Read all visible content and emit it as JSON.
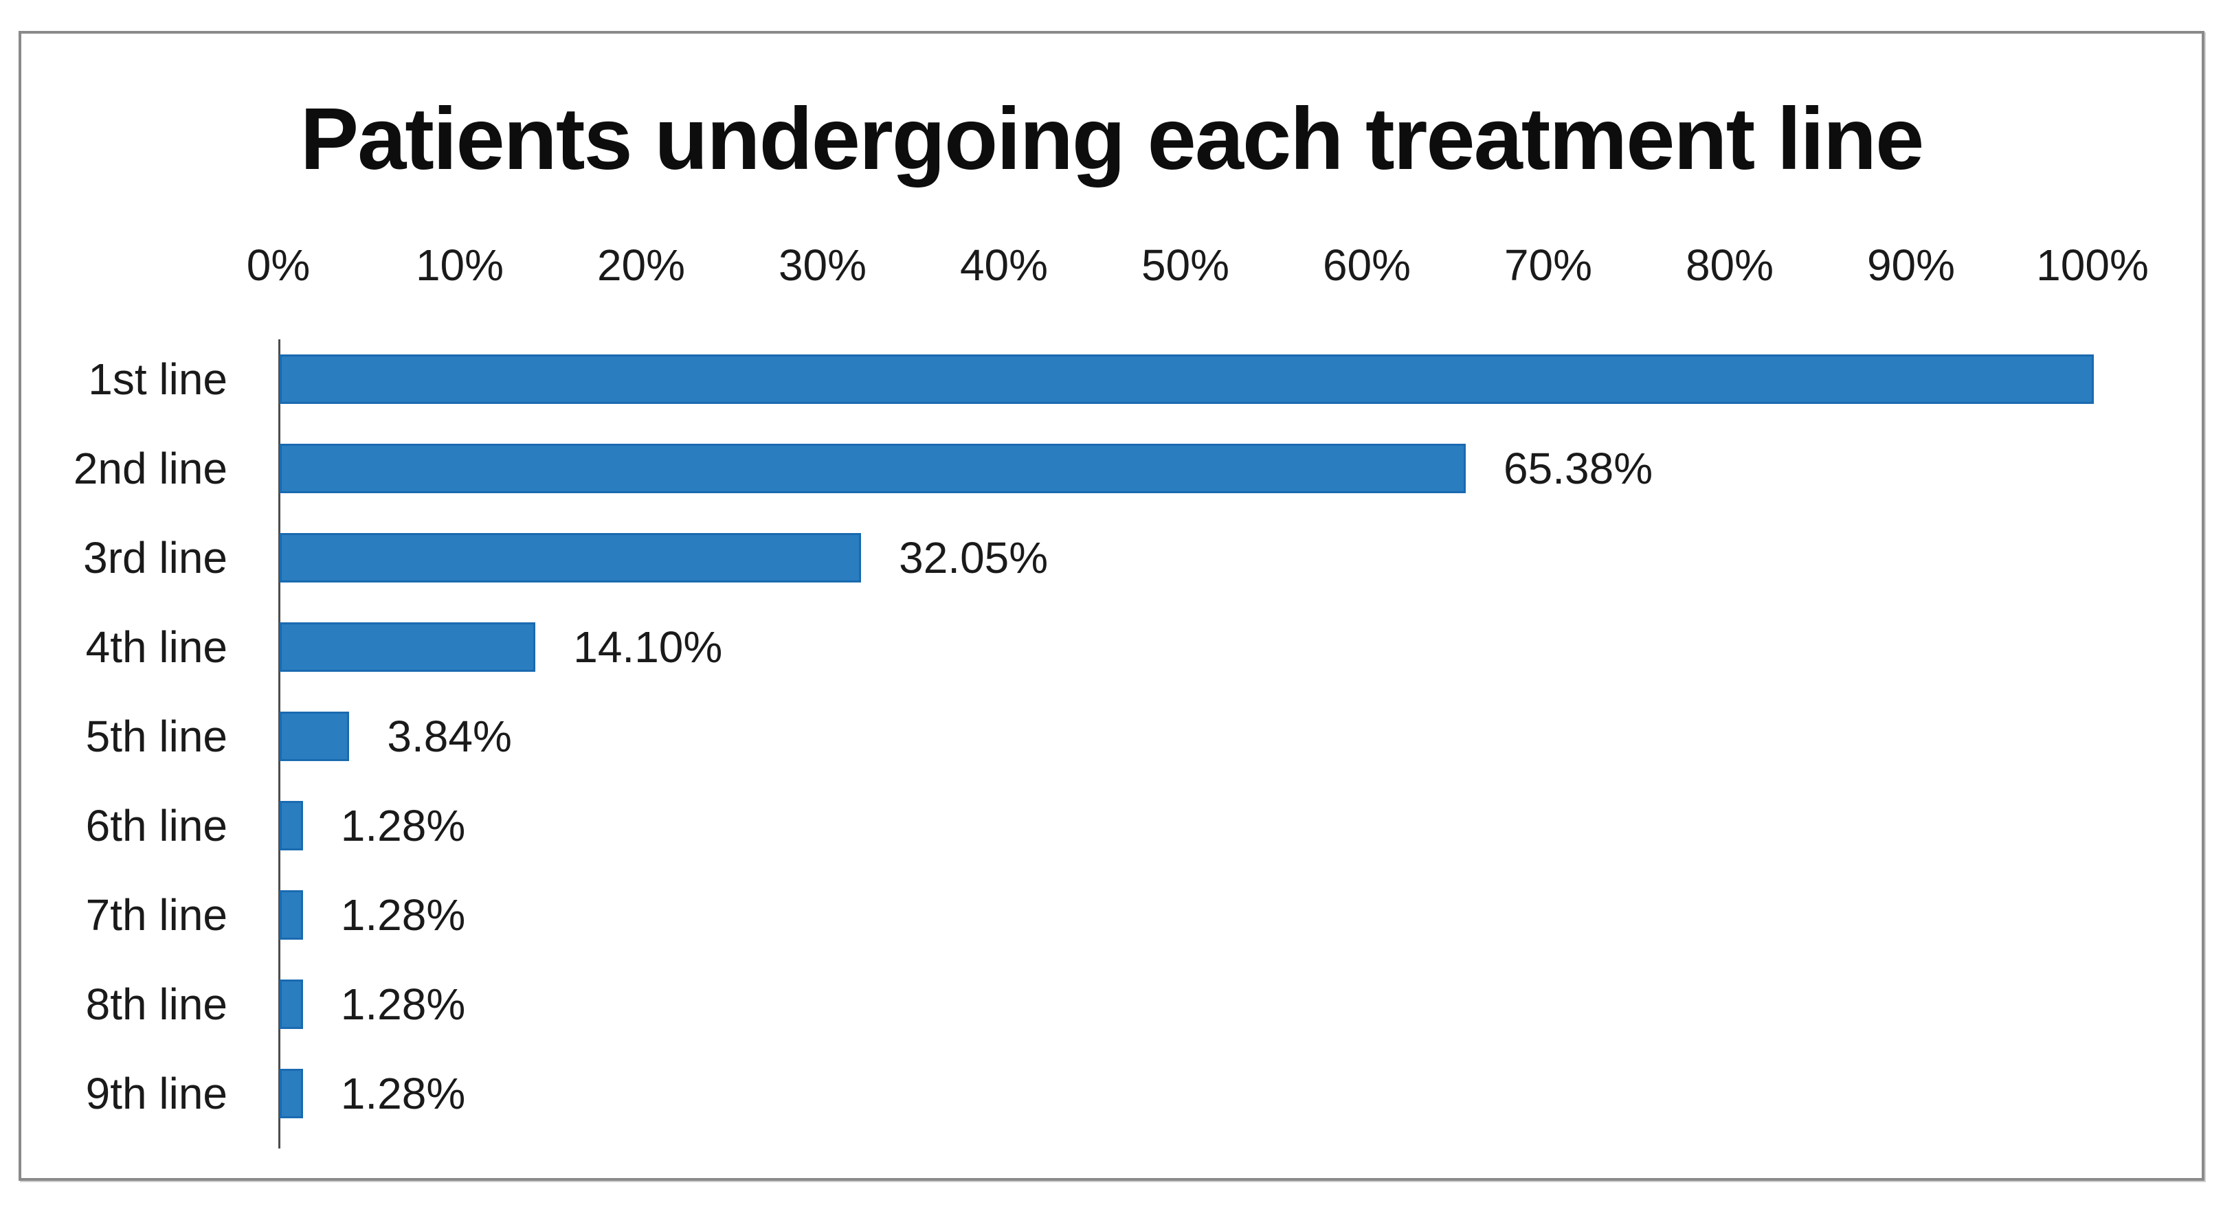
{
  "figure": {
    "background_color": "#ffffff",
    "frame_border_color": "#8a8a8a"
  },
  "chart_data": {
    "type": "bar",
    "orientation": "horizontal",
    "title": "Patients undergoing each treatment line",
    "categories": [
      "1st line",
      "2nd line",
      "3rd line",
      "4th line",
      "5th line",
      "6th line",
      "7th line",
      "8th line",
      "9th line"
    ],
    "values": [
      100,
      65.38,
      32.05,
      14.1,
      3.84,
      1.28,
      1.28,
      1.28,
      1.28
    ],
    "data_labels": [
      "",
      "65.38%",
      "32.05%",
      "14.10%",
      "3.84%",
      "1.28%",
      "1.28%",
      "1.28%",
      "1.28%"
    ],
    "x_ticks": [
      "0%",
      "10%",
      "20%",
      "30%",
      "40%",
      "50%",
      "60%",
      "70%",
      "80%",
      "90%",
      "100%"
    ],
    "xlabel": "",
    "ylabel": "",
    "xlim": [
      0,
      100
    ],
    "grid": false,
    "legend": "none",
    "tick_label_position": "top",
    "bar_color": "#2a7ec0",
    "bar_border_color": "#1a6ab0",
    "axis_line_color": "#4d4d4d",
    "text_color": "#1a1a1a",
    "title_color": "#0d0d0d"
  }
}
